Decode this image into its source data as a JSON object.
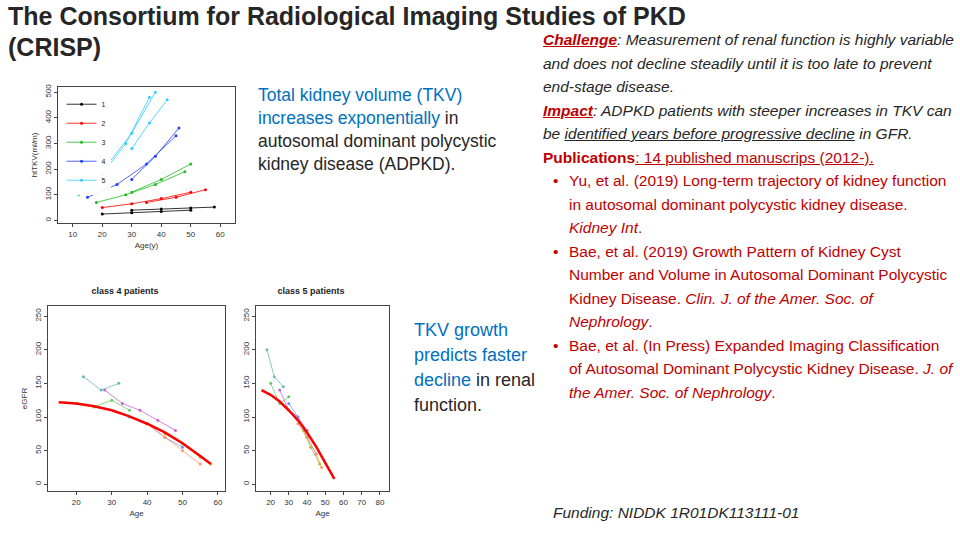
{
  "title": "The Consortium for Radiological Imaging Studies of PKD",
  "subtitle": "(CRISP)",
  "chart_data": [
    {
      "type": "line",
      "x_label": "Age(y)",
      "y_label": "htTKV(ml/m)",
      "legend": "top-left",
      "xlim": [
        5,
        65
      ],
      "xticks": [
        10,
        20,
        30,
        40,
        50,
        60
      ],
      "ylim": [
        -10,
        520
      ],
      "yticks": [
        0,
        100,
        200,
        300,
        400,
        500
      ],
      "series": [
        {
          "name": "1",
          "color": "#000000",
          "marker": "circle",
          "lines": [
            {
              "x": [
                20,
                30,
                40,
                50
              ],
              "values": [
                25,
                30,
                35,
                40
              ]
            },
            {
              "x": [
                30,
                40,
                50,
                58
              ],
              "values": [
                40,
                45,
                48,
                52
              ]
            }
          ]
        },
        {
          "name": "2",
          "color": "#ff0000",
          "marker": "circle",
          "lines": [
            {
              "x": [
                20,
                30,
                40,
                50
              ],
              "values": [
                50,
                65,
                85,
                110
              ]
            },
            {
              "x": [
                35,
                45,
                55
              ],
              "values": [
                70,
                90,
                120
              ]
            }
          ]
        },
        {
          "name": "3",
          "color": "#22bb22",
          "marker": "circle",
          "lines": [
            {
              "x": [
                18,
                28,
                38,
                48
              ],
              "values": [
                70,
                100,
                140,
                190
              ]
            },
            {
              "x": [
                30,
                40,
                50
              ],
              "values": [
                110,
                160,
                220
              ]
            }
          ]
        },
        {
          "name": "4",
          "color": "#1f3fff",
          "marker": "circle",
          "lines": [
            {
              "x": [
                15,
                25,
                35,
                45
              ],
              "values": [
                90,
                140,
                220,
                330
              ]
            },
            {
              "x": [
                30,
                38,
                46
              ],
              "values": [
                160,
                250,
                360
              ]
            }
          ]
        },
        {
          "name": "5",
          "color": "#33ccff",
          "marker": "circle",
          "lines": [
            {
              "x": [
                12,
                20,
                28,
                36
              ],
              "values": [
                100,
                180,
                300,
                480
              ]
            },
            {
              "x": [
                22,
                30,
                38
              ],
              "values": [
                220,
                340,
                500
              ]
            },
            {
              "x": [
                30,
                36,
                42
              ],
              "values": [
                280,
                380,
                470
              ]
            }
          ]
        }
      ]
    },
    {
      "type": "line",
      "title": "class 4 patients",
      "x_label": "Age",
      "y_label": "eGFR",
      "xlim": [
        12,
        62
      ],
      "xticks": [
        20,
        30,
        40,
        50,
        60
      ],
      "ylim": [
        -10,
        265
      ],
      "yticks": [
        0,
        50,
        100,
        150,
        200,
        250
      ],
      "series": [
        {
          "color": "#66cc66",
          "marker": "circle",
          "x": [
            20,
            25,
            30,
            35
          ],
          "values": [
            120,
            115,
            125,
            110
          ]
        },
        {
          "color": "#cc66cc",
          "marker": "circle",
          "x": [
            28,
            33,
            38,
            43,
            48
          ],
          "values": [
            140,
            120,
            110,
            95,
            80
          ]
        },
        {
          "color": "#6699ff",
          "marker": "circle",
          "x": [
            35,
            40,
            45,
            50
          ],
          "values": [
            100,
            90,
            70,
            55
          ]
        },
        {
          "color": "#ff9966",
          "marker": "circle",
          "x": [
            40,
            45,
            50,
            55
          ],
          "values": [
            90,
            70,
            50,
            30
          ]
        },
        {
          "color": "#66bbbb",
          "marker": "circle",
          "x": [
            22,
            27,
            32
          ],
          "values": [
            160,
            140,
            150
          ]
        },
        {
          "color": "#bbbb33",
          "marker": "circle",
          "x": [
            45,
            50,
            55,
            58
          ],
          "values": [
            75,
            60,
            40,
            30
          ]
        },
        {
          "color": "#ff0000",
          "line_style": "thick",
          "x": [
            15,
            20,
            25,
            30,
            35,
            40,
            45,
            50,
            55,
            58
          ],
          "values": [
            122,
            120,
            116,
            110,
            101,
            90,
            77,
            61,
            42,
            30
          ]
        }
      ]
    },
    {
      "type": "line",
      "title": "class 5 patients",
      "x_label": "Age",
      "xlim": [
        12,
        85
      ],
      "xticks": [
        20,
        30,
        40,
        50,
        60,
        70,
        80
      ],
      "ylim": [
        -10,
        265
      ],
      "yticks": [
        0,
        50,
        100,
        150,
        200,
        250
      ],
      "series": [
        {
          "color": "#66cc66",
          "marker": "circle",
          "x": [
            20,
            25,
            30
          ],
          "values": [
            150,
            120,
            130
          ]
        },
        {
          "color": "#cc66cc",
          "marker": "circle",
          "x": [
            25,
            30,
            35,
            40
          ],
          "values": [
            140,
            110,
            100,
            80
          ]
        },
        {
          "color": "#6699ff",
          "marker": "circle",
          "x": [
            30,
            35,
            40,
            45
          ],
          "values": [
            120,
            100,
            70,
            45
          ]
        },
        {
          "color": "#ff9966",
          "marker": "circle",
          "x": [
            35,
            40,
            45,
            48
          ],
          "values": [
            90,
            70,
            45,
            25
          ]
        },
        {
          "color": "#66bbbb",
          "marker": "circle",
          "x": [
            18,
            22,
            27
          ],
          "values": [
            200,
            160,
            145
          ]
        },
        {
          "color": "#bbbb33",
          "marker": "circle",
          "x": [
            38,
            42,
            47
          ],
          "values": [
            80,
            55,
            30
          ]
        },
        {
          "color": "#ff0000",
          "line_style": "thick",
          "x": [
            15,
            20,
            25,
            30,
            35,
            40,
            45,
            50,
            55
          ],
          "values": [
            140,
            133,
            123,
            110,
            95,
            77,
            56,
            33,
            8
          ]
        }
      ]
    }
  ],
  "captions": [
    [
      {
        "text": "Total kidney volume (TKV) increases exponentially",
        "color": "#0070c0"
      },
      {
        "text": " in autosomal dominant polycystic kidney disease (ADPKD)."
      }
    ],
    [
      {
        "text": "TKV growth predicts faster decline",
        "color": "#0070c0"
      },
      {
        "text": " in renal function."
      }
    ]
  ],
  "sidebar": [
    {
      "segments": [
        {
          "text": "Challenge",
          "color": "#c00000",
          "bold": true,
          "italic": true,
          "underline": true
        },
        {
          "text": ": Measurement of renal function is highly variable and does not decline steadily until it is too late to prevent end-stage disease.",
          "italic": true
        }
      ]
    },
    {
      "segments": [
        {
          "text": "Impact",
          "color": "#c00000",
          "bold": true,
          "italic": true,
          "underline": true
        },
        {
          "text": ": ADPKD patients with steeper increases in TKV can be ",
          "italic": true
        },
        {
          "text": "identified years before progressive decline",
          "italic": true,
          "underline": true
        },
        {
          "text": " in GFR.",
          "italic": true
        }
      ]
    },
    {
      "segments": [
        {
          "text": "Publications",
          "color": "#c00000",
          "bold": true
        },
        {
          "text": ": 14 published manuscrips (2012-).",
          "color": "#c00000",
          "underline": true
        }
      ]
    },
    {
      "bullet": "•",
      "segments": [
        {
          "text": "Yu, et al. (2019) Long-term trajectory of kidney function in autosomal dominant polycystic kidney disease. ",
          "color": "#c00000"
        },
        {
          "text": "Kidney Int",
          "color": "#c00000",
          "italic": true
        },
        {
          "text": ".",
          "color": "#c00000"
        }
      ]
    },
    {
      "bullet": "•",
      "segments": [
        {
          "text": "Bae, et al. (2019) Growth Pattern of Kidney Cyst Number and Volume in Autosomal Dominant Polycystic Kidney Disease. ",
          "color": "#c00000"
        },
        {
          "text": "Clin. J. of the Amer. Soc. of Nephrology",
          "color": "#c00000",
          "italic": true
        },
        {
          "text": ".",
          "color": "#c00000"
        }
      ]
    },
    {
      "bullet": "•",
      "segments": [
        {
          "text": "Bae, et al. (In Press) Expanded Imaging Classification of Autosomal Dominant Polycystic Kidney Disease. ",
          "color": "#c00000"
        },
        {
          "text": "J. of the Amer. Soc. of Nephrology",
          "color": "#c00000",
          "italic": true
        },
        {
          "text": ".",
          "color": "#c00000"
        }
      ]
    }
  ],
  "funding": [
    {
      "text": "Funding: ",
      "italic": true
    },
    {
      "text": "NIDDK 1R01DK113111-01",
      "italic": true
    }
  ]
}
